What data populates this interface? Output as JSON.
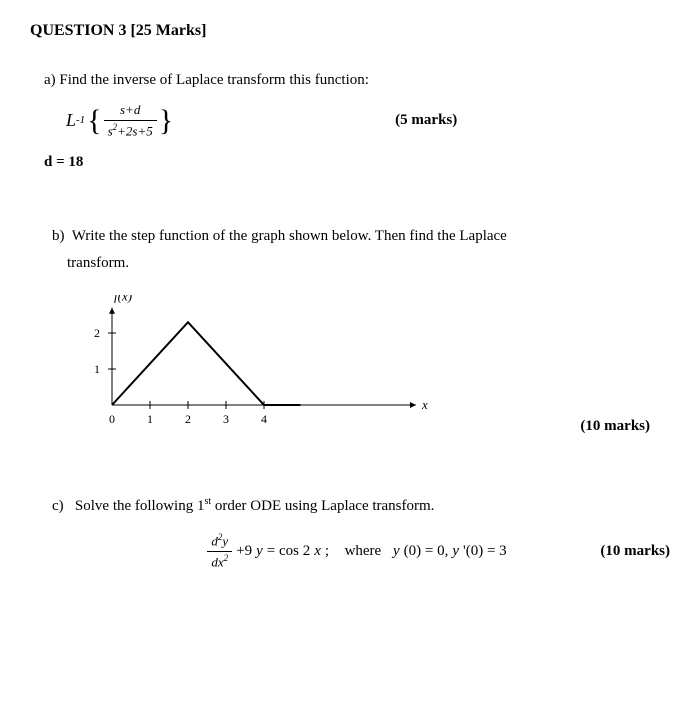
{
  "heading": "QUESTION 3 [25 Marks]",
  "partA": {
    "prompt": "a) Find the inverse of Laplace transform this function:",
    "formula": {
      "L": "L",
      "exp": "-1",
      "num": "s+d",
      "den_s2": "s",
      "den_exp": "2",
      "den_rest": "+2s+5"
    },
    "marks": "(5 marks)",
    "d_value": "d = 18"
  },
  "partB": {
    "label": "b)",
    "text1": "Write the step function of the graph shown below. Then find the Laplace",
    "text2": "transform.",
    "graph": {
      "ylabel": "f(x)",
      "xlabel": "x",
      "yticks": [
        {
          "v": 2,
          "label": "2"
        },
        {
          "v": 1,
          "label": "1"
        }
      ],
      "xticks": [
        {
          "v": 0,
          "label": "0"
        },
        {
          "v": 1,
          "label": "1"
        },
        {
          "v": 2,
          "label": "2"
        },
        {
          "v": 3,
          "label": "3"
        },
        {
          "v": 4,
          "label": "4"
        }
      ],
      "polyline": [
        [
          0,
          0
        ],
        [
          2,
          2.3
        ],
        [
          4,
          0
        ]
      ],
      "flatline_end_x": 8,
      "axis_color": "#000000",
      "line_color": "#000000",
      "line_width": 2,
      "bg": "#ffffff",
      "x_origin": 40,
      "y_origin": 110,
      "x_scale": 38,
      "y_scale": 36,
      "fontsize_axis": 12,
      "fontsize_label": 13
    },
    "marks": "(10 marks)"
  },
  "partC": {
    "label": "c)",
    "text": "Solve the following 1",
    "ord_sup": "st",
    "text2": " order ODE using Laplace transform.",
    "ode": {
      "num": "d",
      "num_exp": "2",
      "num_y": "y",
      "den": "dx",
      "den_exp": "2",
      "plus": "+9",
      "yvar": "y",
      "eq": " = cos 2",
      "xvar": "x",
      "semi": " ;",
      "where": "where",
      "cond1_y": "y",
      "cond1": "(0) = 0, ",
      "cond2_y": "y",
      "cond2_prime": "'(0) = 3"
    },
    "marks": "(10 marks)"
  }
}
